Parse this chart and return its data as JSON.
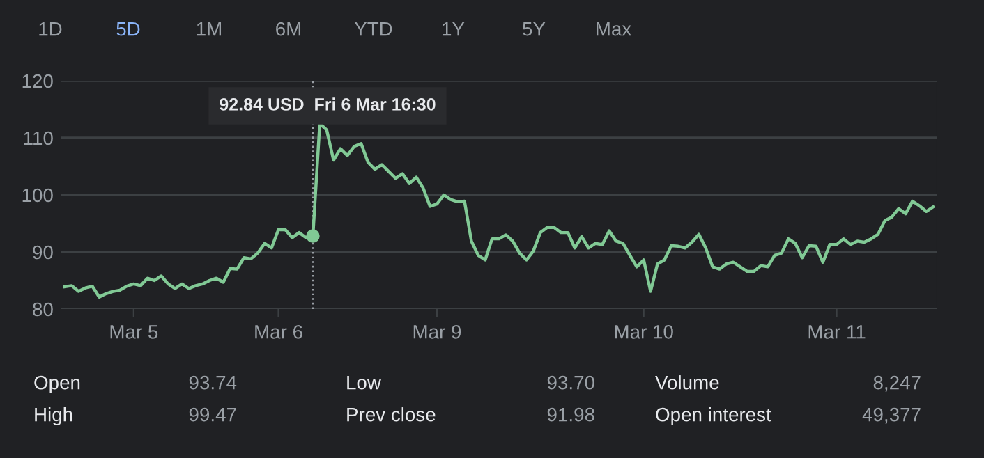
{
  "chart_data": {
    "type": "line",
    "grid": "y",
    "color": "#81c995",
    "categories": [
      null,
      null,
      null,
      null,
      null,
      null,
      null,
      null,
      null,
      null,
      "Mar 5",
      null,
      null,
      null,
      null,
      null,
      null,
      null,
      null,
      null,
      null,
      null,
      null,
      null,
      null,
      null,
      null,
      null,
      null,
      null,
      null,
      "Mar 6",
      null,
      null,
      null,
      null,
      null,
      null,
      null,
      null,
      null,
      null,
      null,
      null,
      null,
      null,
      null,
      null,
      null,
      null,
      null,
      null,
      null,
      null,
      "Mar 9",
      null,
      null,
      null,
      null,
      null,
      null,
      null,
      null,
      null,
      null,
      null,
      null,
      null,
      null,
      null,
      null,
      null,
      null,
      null,
      null,
      null,
      null,
      null,
      null,
      null,
      null,
      null,
      null,
      null,
      "Mar 10",
      null,
      null,
      null,
      null,
      null,
      null,
      null,
      null,
      null,
      null,
      null,
      null,
      null,
      null,
      null,
      null,
      null,
      null,
      null,
      null,
      null,
      null,
      null,
      null,
      null,
      null,
      null,
      "Mar 11",
      null,
      null,
      null,
      null,
      null,
      null,
      null,
      null,
      null,
      null,
      null,
      null,
      null,
      null
    ],
    "values": [
      83.9,
      84.1,
      83.1,
      83.7,
      84.0,
      82.1,
      82.7,
      83.1,
      83.3,
      84.0,
      84.4,
      84.1,
      85.4,
      85.0,
      85.8,
      84.4,
      83.6,
      84.4,
      83.6,
      84.1,
      84.4,
      85.0,
      85.4,
      84.7,
      87.1,
      87.0,
      89.0,
      88.8,
      89.8,
      91.5,
      90.7,
      93.9,
      93.9,
      92.5,
      93.4,
      92.5,
      92.8,
      112.5,
      111.4,
      106.1,
      108.1,
      106.9,
      108.5,
      109.0,
      105.7,
      104.5,
      105.3,
      104.1,
      102.9,
      103.7,
      102.0,
      103.1,
      101.2,
      98.0,
      98.4,
      100.0,
      99.2,
      98.8,
      98.9,
      91.9,
      89.4,
      88.6,
      92.3,
      92.3,
      93.0,
      91.9,
      89.8,
      88.6,
      90.2,
      93.4,
      94.3,
      94.3,
      93.4,
      93.4,
      90.7,
      92.7,
      90.7,
      91.5,
      91.3,
      93.7,
      91.9,
      91.5,
      89.4,
      87.4,
      88.6,
      83.1,
      87.9,
      88.6,
      91.1,
      91.0,
      90.7,
      91.7,
      93.1,
      90.7,
      87.4,
      87.0,
      87.9,
      88.2,
      87.4,
      86.6,
      86.6,
      87.6,
      87.4,
      89.4,
      89.8,
      92.3,
      91.5,
      89.0,
      91.1,
      91.0,
      88.2,
      91.3,
      91.3,
      92.3,
      91.3,
      91.9,
      91.7,
      92.3,
      93.1,
      95.5,
      96.1,
      97.6,
      96.7,
      98.9,
      98.1,
      97.1,
      97.9
    ],
    "ylim": [
      80,
      120
    ],
    "yticks": [
      80,
      90,
      100,
      110,
      120
    ],
    "annotations": [
      "92.84 USD  Fri 6 Mar 16:30",
      "1D",
      "5D",
      "1M",
      "6M",
      "YTD",
      "1Y",
      "5Y",
      "Max",
      "Open",
      "93.74",
      "High",
      "99.47",
      "Low",
      "93.70",
      "Prev close",
      "91.98",
      "Volume",
      "8,247",
      "Open interest",
      "49,377"
    ]
  }
}
